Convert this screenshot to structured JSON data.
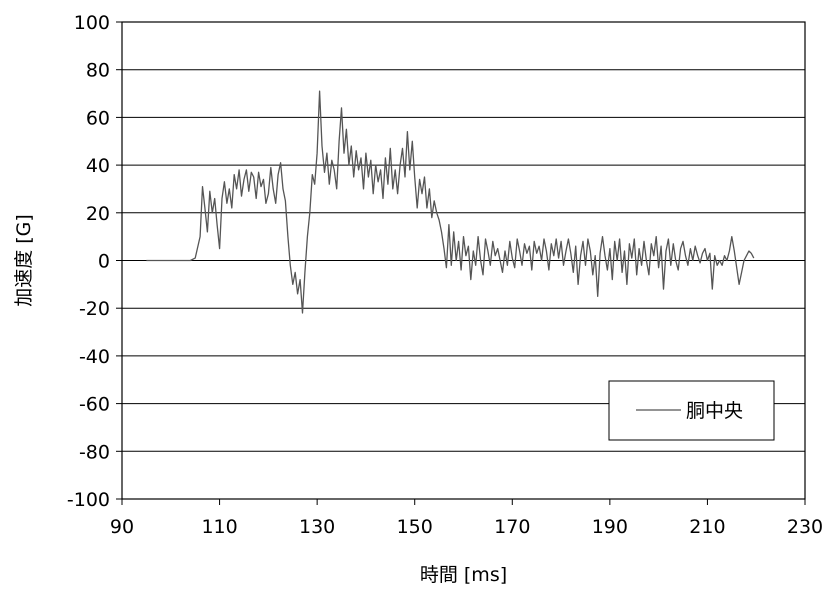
{
  "chart_data": {
    "type": "line",
    "title": "",
    "xlabel": "時間 [ms]",
    "ylabel": "加速度 [G]",
    "xlim": [
      90,
      230
    ],
    "ylim": [
      -100,
      100
    ],
    "x_ticks": [
      90,
      110,
      130,
      150,
      170,
      190,
      210,
      230
    ],
    "y_ticks": [
      100,
      80,
      60,
      40,
      20,
      0,
      -20,
      -40,
      -60,
      -80,
      -100
    ],
    "x_tick_labels": [
      "90",
      "110",
      "130",
      "150",
      "170",
      "190",
      "210",
      "230"
    ],
    "y_tick_labels": [
      "100",
      "80",
      "60",
      "40",
      "20",
      "0",
      "-20",
      "-40",
      "-60",
      "-80",
      "-100"
    ],
    "grid": true,
    "legend_position": "bottom-right",
    "series": [
      {
        "name": "胴中央",
        "color": "#555555",
        "points": [
          [
            95,
            0
          ],
          [
            100,
            0
          ],
          [
            104,
            0
          ],
          [
            105,
            1
          ],
          [
            106,
            10
          ],
          [
            106.5,
            31
          ],
          [
            107,
            22
          ],
          [
            107.5,
            12
          ],
          [
            108,
            29
          ],
          [
            108.5,
            20
          ],
          [
            109,
            26
          ],
          [
            109.5,
            15
          ],
          [
            110,
            5
          ],
          [
            110.5,
            26
          ],
          [
            111,
            33
          ],
          [
            111.5,
            24
          ],
          [
            112,
            30
          ],
          [
            112.5,
            22
          ],
          [
            113,
            36
          ],
          [
            113.5,
            30
          ],
          [
            114,
            38
          ],
          [
            114.5,
            27
          ],
          [
            115,
            34
          ],
          [
            115.5,
            38
          ],
          [
            116,
            29
          ],
          [
            116.5,
            37
          ],
          [
            117,
            35
          ],
          [
            117.5,
            26
          ],
          [
            118,
            37
          ],
          [
            118.5,
            31
          ],
          [
            119,
            34
          ],
          [
            119.5,
            24
          ],
          [
            120,
            28
          ],
          [
            120.5,
            39
          ],
          [
            121,
            30
          ],
          [
            121.5,
            24
          ],
          [
            122,
            36
          ],
          [
            122.5,
            41
          ],
          [
            123,
            30
          ],
          [
            123.5,
            25
          ],
          [
            124,
            10
          ],
          [
            124.5,
            -2
          ],
          [
            125,
            -10
          ],
          [
            125.5,
            -5
          ],
          [
            126,
            -14
          ],
          [
            126.5,
            -8
          ],
          [
            127,
            -22
          ],
          [
            127.5,
            -5
          ],
          [
            128,
            10
          ],
          [
            128.5,
            20
          ],
          [
            129,
            36
          ],
          [
            129.5,
            32
          ],
          [
            130,
            45
          ],
          [
            130.5,
            71
          ],
          [
            131,
            48
          ],
          [
            131.5,
            37
          ],
          [
            132,
            45
          ],
          [
            132.5,
            32
          ],
          [
            133,
            42
          ],
          [
            133.5,
            38
          ],
          [
            134,
            30
          ],
          [
            134.5,
            50
          ],
          [
            135,
            64
          ],
          [
            135.5,
            45
          ],
          [
            136,
            55
          ],
          [
            136.5,
            40
          ],
          [
            137,
            48
          ],
          [
            137.5,
            35
          ],
          [
            138,
            46
          ],
          [
            138.5,
            38
          ],
          [
            139,
            43
          ],
          [
            139.5,
            30
          ],
          [
            140,
            45
          ],
          [
            140.5,
            35
          ],
          [
            141,
            42
          ],
          [
            141.5,
            28
          ],
          [
            142,
            40
          ],
          [
            142.5,
            33
          ],
          [
            143,
            38
          ],
          [
            143.5,
            26
          ],
          [
            144,
            43
          ],
          [
            144.5,
            32
          ],
          [
            145,
            47
          ],
          [
            145.5,
            30
          ],
          [
            146,
            38
          ],
          [
            146.5,
            28
          ],
          [
            147,
            40
          ],
          [
            147.5,
            47
          ],
          [
            148,
            35
          ],
          [
            148.5,
            54
          ],
          [
            149,
            38
          ],
          [
            149.5,
            50
          ],
          [
            150,
            35
          ],
          [
            150.5,
            22
          ],
          [
            151,
            34
          ],
          [
            151.5,
            28
          ],
          [
            152,
            35
          ],
          [
            152.5,
            22
          ],
          [
            153,
            30
          ],
          [
            153.5,
            18
          ],
          [
            154,
            25
          ],
          [
            154.5,
            20
          ],
          [
            155,
            17
          ],
          [
            155.5,
            12
          ],
          [
            156,
            5
          ],
          [
            156.5,
            -3
          ],
          [
            157,
            15
          ],
          [
            157.5,
            -2
          ],
          [
            158,
            12
          ],
          [
            158.5,
            0
          ],
          [
            159,
            8
          ],
          [
            159.5,
            -4
          ],
          [
            160,
            10
          ],
          [
            160.5,
            2
          ],
          [
            161,
            6
          ],
          [
            161.5,
            -8
          ],
          [
            162,
            4
          ],
          [
            162.5,
            -2
          ],
          [
            163,
            10
          ],
          [
            163.5,
            0
          ],
          [
            164,
            -6
          ],
          [
            164.5,
            9
          ],
          [
            165,
            4
          ],
          [
            165.5,
            -2
          ],
          [
            166,
            8
          ],
          [
            166.5,
            2
          ],
          [
            167,
            5
          ],
          [
            167.5,
            0
          ],
          [
            168,
            -5
          ],
          [
            168.5,
            4
          ],
          [
            169,
            -2
          ],
          [
            169.5,
            8
          ],
          [
            170,
            1
          ],
          [
            170.5,
            -3
          ],
          [
            171,
            9
          ],
          [
            171.5,
            4
          ],
          [
            172,
            -2
          ],
          [
            172.5,
            7
          ],
          [
            173,
            3
          ],
          [
            173.5,
            6
          ],
          [
            174,
            -4
          ],
          [
            174.5,
            8
          ],
          [
            175,
            3
          ],
          [
            175.5,
            6
          ],
          [
            176,
            0
          ],
          [
            176.5,
            9
          ],
          [
            177,
            4
          ],
          [
            177.5,
            -4
          ],
          [
            178,
            7
          ],
          [
            178.5,
            2
          ],
          [
            179,
            9
          ],
          [
            179.5,
            1
          ],
          [
            180,
            8
          ],
          [
            180.5,
            -2
          ],
          [
            181,
            4
          ],
          [
            181.5,
            9
          ],
          [
            182,
            3
          ],
          [
            182.5,
            -5
          ],
          [
            183,
            6
          ],
          [
            183.5,
            -10
          ],
          [
            184,
            2
          ],
          [
            184.5,
            8
          ],
          [
            185,
            -2
          ],
          [
            185.5,
            9
          ],
          [
            186,
            4
          ],
          [
            186.5,
            -6
          ],
          [
            187,
            2
          ],
          [
            187.5,
            -15
          ],
          [
            188,
            3
          ],
          [
            188.5,
            10
          ],
          [
            189,
            2
          ],
          [
            189.5,
            -4
          ],
          [
            190,
            5
          ],
          [
            190.5,
            -8
          ],
          [
            191,
            8
          ],
          [
            191.5,
            0
          ],
          [
            192,
            9
          ],
          [
            192.5,
            -5
          ],
          [
            193,
            4
          ],
          [
            193.5,
            -10
          ],
          [
            194,
            7
          ],
          [
            194.5,
            1
          ],
          [
            195,
            9
          ],
          [
            195.5,
            -6
          ],
          [
            196,
            5
          ],
          [
            196.5,
            -2
          ],
          [
            197,
            8
          ],
          [
            197.5,
            0
          ],
          [
            198,
            -6
          ],
          [
            198.5,
            7
          ],
          [
            199,
            2
          ],
          [
            199.5,
            10
          ],
          [
            200,
            -3
          ],
          [
            200.5,
            6
          ],
          [
            201,
            -12
          ],
          [
            201.5,
            4
          ],
          [
            202,
            9
          ],
          [
            202.5,
            -2
          ],
          [
            203,
            7
          ],
          [
            203.5,
            0
          ],
          [
            204,
            -4
          ],
          [
            204.5,
            5
          ],
          [
            205,
            8
          ],
          [
            205.5,
            2
          ],
          [
            206,
            -2
          ],
          [
            206.5,
            5
          ],
          [
            207,
            0
          ],
          [
            207.5,
            6
          ],
          [
            208,
            2
          ],
          [
            208.5,
            -1
          ],
          [
            209,
            3
          ],
          [
            209.5,
            5
          ],
          [
            210,
            0
          ],
          [
            210.5,
            3
          ],
          [
            211,
            -12
          ],
          [
            211.5,
            2
          ],
          [
            212,
            -2
          ],
          [
            212.5,
            0
          ],
          [
            213,
            -2
          ],
          [
            213.5,
            2
          ],
          [
            214,
            0
          ],
          [
            214.5,
            4
          ],
          [
            215,
            10
          ],
          [
            215.5,
            4
          ],
          [
            216,
            -3
          ],
          [
            216.5,
            -10
          ],
          [
            217,
            -5
          ],
          [
            217.5,
            0
          ],
          [
            218,
            2
          ],
          [
            218.5,
            4
          ],
          [
            219,
            3
          ],
          [
            219.5,
            1
          ]
        ]
      }
    ]
  }
}
